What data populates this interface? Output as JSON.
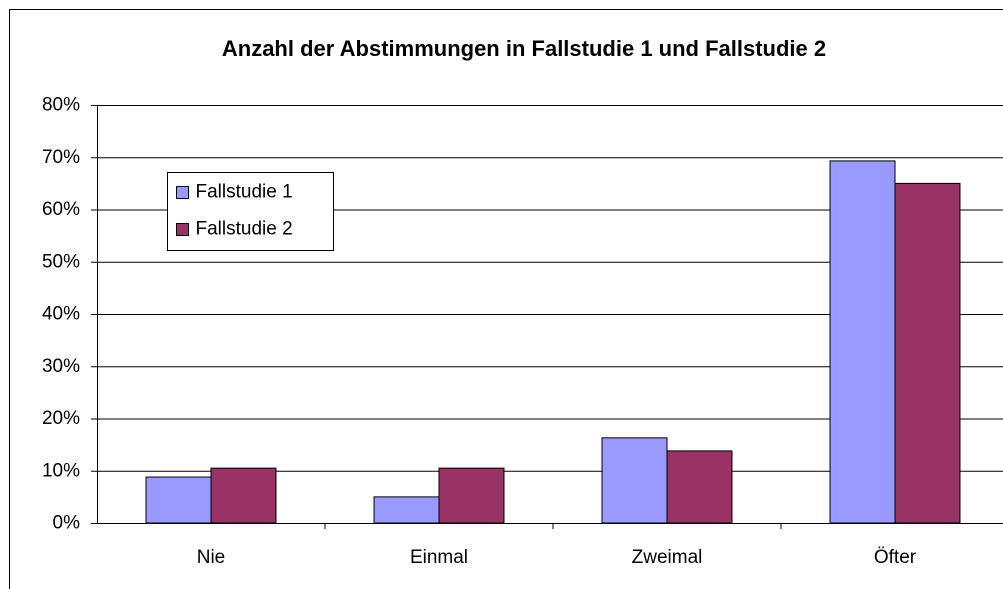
{
  "chart_data": {
    "type": "bar",
    "title": "Anzahl der Abstimmungen in Fallstudie 1 und Fallstudie 2",
    "categories": [
      "Nie",
      "Einmal",
      "Zweimal",
      "Öfter"
    ],
    "series": [
      {
        "name": "Fallstudie 1",
        "color": "#9999ff",
        "values": [
          8.8,
          5.0,
          16.3,
          69.3
        ]
      },
      {
        "name": "Fallstudie 2",
        "color": "#993366",
        "values": [
          10.5,
          10.5,
          13.8,
          65.0
        ]
      }
    ],
    "ylim": [
      0,
      80
    ],
    "yticks": [
      {
        "value": 0,
        "label": "0%"
      },
      {
        "value": 10,
        "label": "10%"
      },
      {
        "value": 20,
        "label": "20%"
      },
      {
        "value": 30,
        "label": "30%"
      },
      {
        "value": 40,
        "label": "40%"
      },
      {
        "value": 50,
        "label": "50%"
      },
      {
        "value": 60,
        "label": "60%"
      },
      {
        "value": 70,
        "label": "70%"
      },
      {
        "value": 80,
        "label": "80%"
      }
    ],
    "grid": true,
    "legend": "upper left"
  }
}
